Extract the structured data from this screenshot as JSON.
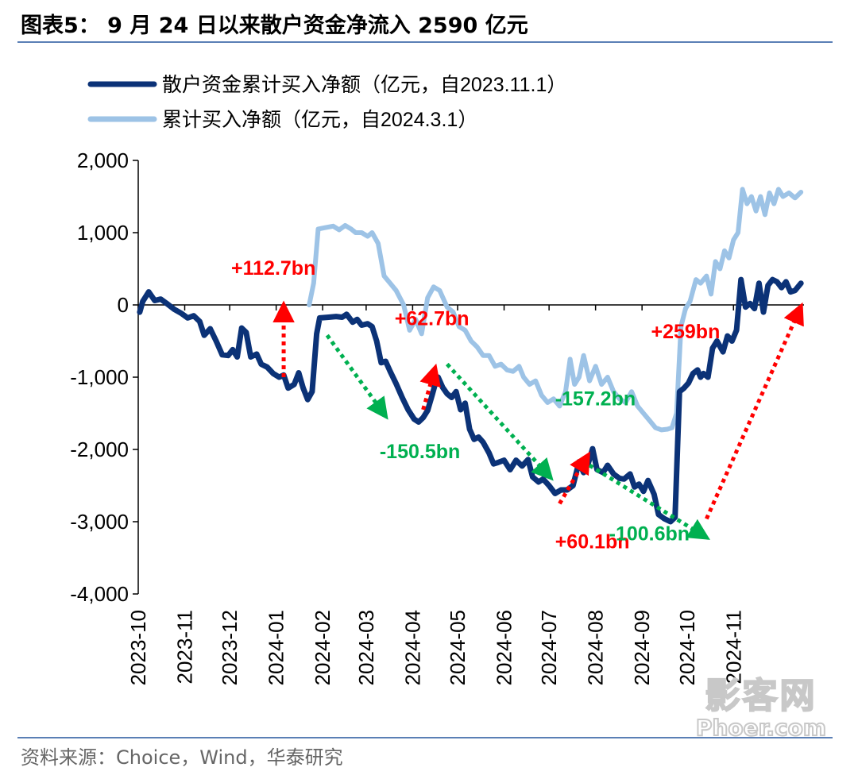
{
  "title": "图表5： 9 月 24 日以来散户资金净流入 2590 亿元",
  "source": "资料来源：Choice，Wind，华泰研究",
  "watermark": {
    "line1": "影客网",
    "line2": "Phoer.com"
  },
  "colors": {
    "series1": "#0b3277",
    "series2": "#9dc3e6",
    "up": "#ff0000",
    "down": "#00b050",
    "rule": "#5a7fb5"
  },
  "chart_data": {
    "type": "line",
    "ylim": [
      -4000,
      2000
    ],
    "yticks": [
      2000,
      1000,
      0,
      -1000,
      -2000,
      -3000,
      -4000
    ],
    "ytick_labels": [
      "2,000",
      "1,000",
      "0",
      "-1,000",
      "-2,000",
      "-3,000",
      "-4,000"
    ],
    "xlim": [
      "2023-10-01",
      "2024-12-01"
    ],
    "xticks": [
      "2023-10-01",
      "2023-11-01",
      "2023-12-01",
      "2024-01-01",
      "2024-02-01",
      "2024-03-01",
      "2024-04-01",
      "2024-05-01",
      "2024-06-01",
      "2024-07-01",
      "2024-08-01",
      "2024-09-01",
      "2024-10-01",
      "2024-11-01"
    ],
    "xtick_labels": [
      "2023-10",
      "2023-11",
      "2023-12",
      "2024-01",
      "2024-02",
      "2024-03",
      "2024-04",
      "2024-05",
      "2024-06",
      "2024-07",
      "2024-08",
      "2024-09",
      "2024-10",
      "2024-11"
    ],
    "legend_position": "top-left",
    "series": [
      {
        "name": "散户资金累计买入净额（亿元，自2023.11.1）",
        "color": "#0b3277",
        "points": [
          [
            "2023-10-02",
            -100
          ],
          [
            "2023-10-04",
            50
          ],
          [
            "2023-10-08",
            180
          ],
          [
            "2023-10-12",
            60
          ],
          [
            "2023-10-16",
            80
          ],
          [
            "2023-10-20",
            20
          ],
          [
            "2023-10-25",
            -60
          ],
          [
            "2023-10-30",
            -120
          ],
          [
            "2023-11-03",
            -180
          ],
          [
            "2023-11-07",
            -150
          ],
          [
            "2023-11-11",
            -230
          ],
          [
            "2023-11-14",
            -420
          ],
          [
            "2023-11-18",
            -330
          ],
          [
            "2023-11-22",
            -500
          ],
          [
            "2023-11-26",
            -690
          ],
          [
            "2023-11-30",
            -700
          ],
          [
            "2023-12-03",
            -620
          ],
          [
            "2023-12-06",
            -720
          ],
          [
            "2023-12-09",
            -320
          ],
          [
            "2023-12-12",
            -380
          ],
          [
            "2023-12-15",
            -720
          ],
          [
            "2023-12-19",
            -680
          ],
          [
            "2023-12-22",
            -820
          ],
          [
            "2023-12-26",
            -860
          ],
          [
            "2023-12-30",
            -950
          ],
          [
            "2024-01-03",
            -1000
          ],
          [
            "2024-01-06",
            -970
          ],
          [
            "2024-01-09",
            -1150
          ],
          [
            "2024-01-13",
            -1100
          ],
          [
            "2024-01-16",
            -940
          ],
          [
            "2024-01-19",
            -1150
          ],
          [
            "2024-01-22",
            -1310
          ],
          [
            "2024-01-25",
            -1200
          ],
          [
            "2024-01-28",
            -400
          ],
          [
            "2024-01-30",
            -180
          ],
          [
            "2024-02-05",
            -170
          ],
          [
            "2024-02-10",
            -160
          ],
          [
            "2024-02-14",
            -170
          ],
          [
            "2024-02-17",
            -130
          ],
          [
            "2024-02-21",
            -240
          ],
          [
            "2024-02-24",
            -200
          ],
          [
            "2024-02-27",
            -280
          ],
          [
            "2024-03-02",
            -260
          ],
          [
            "2024-03-05",
            -300
          ],
          [
            "2024-03-08",
            -500
          ],
          [
            "2024-03-11",
            -800
          ],
          [
            "2024-03-14",
            -780
          ],
          [
            "2024-03-17",
            -920
          ],
          [
            "2024-03-21",
            -1090
          ],
          [
            "2024-03-25",
            -1280
          ],
          [
            "2024-03-29",
            -1450
          ],
          [
            "2024-04-02",
            -1580
          ],
          [
            "2024-04-05",
            -1620
          ],
          [
            "2024-04-08",
            -1560
          ],
          [
            "2024-04-11",
            -1460
          ],
          [
            "2024-04-14",
            -1250
          ],
          [
            "2024-04-16",
            -1100
          ],
          [
            "2024-04-18",
            -1000
          ],
          [
            "2024-04-21",
            -1140
          ],
          [
            "2024-04-24",
            -1230
          ],
          [
            "2024-04-27",
            -1280
          ],
          [
            "2024-04-30",
            -1200
          ],
          [
            "2024-05-03",
            -1450
          ],
          [
            "2024-05-06",
            -1360
          ],
          [
            "2024-05-09",
            -1720
          ],
          [
            "2024-05-12",
            -1860
          ],
          [
            "2024-05-15",
            -1830
          ],
          [
            "2024-05-18",
            -1900
          ],
          [
            "2024-05-22",
            -2050
          ],
          [
            "2024-05-25",
            -2200
          ],
          [
            "2024-05-28",
            -2180
          ],
          [
            "2024-06-01",
            -2150
          ],
          [
            "2024-06-05",
            -2280
          ],
          [
            "2024-06-09",
            -2150
          ],
          [
            "2024-06-13",
            -2230
          ],
          [
            "2024-06-17",
            -2140
          ],
          [
            "2024-06-20",
            -2380
          ],
          [
            "2024-06-24",
            -2450
          ],
          [
            "2024-06-27",
            -2410
          ],
          [
            "2024-07-01",
            -2500
          ],
          [
            "2024-07-05",
            -2610
          ],
          [
            "2024-07-09",
            -2560
          ],
          [
            "2024-07-13",
            -2560
          ],
          [
            "2024-07-17",
            -2500
          ],
          [
            "2024-07-21",
            -2170
          ],
          [
            "2024-07-24",
            -2320
          ],
          [
            "2024-07-27",
            -2200
          ],
          [
            "2024-07-30",
            -1990
          ],
          [
            "2024-08-02",
            -2280
          ],
          [
            "2024-08-06",
            -2320
          ],
          [
            "2024-08-09",
            -2220
          ],
          [
            "2024-08-13",
            -2340
          ],
          [
            "2024-08-17",
            -2400
          ],
          [
            "2024-08-20",
            -2410
          ],
          [
            "2024-08-24",
            -2340
          ],
          [
            "2024-08-27",
            -2520
          ],
          [
            "2024-08-30",
            -2480
          ],
          [
            "2024-09-02",
            -2580
          ],
          [
            "2024-09-05",
            -2430
          ],
          [
            "2024-09-09",
            -2620
          ],
          [
            "2024-09-12",
            -2900
          ],
          [
            "2024-09-16",
            -2960
          ],
          [
            "2024-09-20",
            -3000
          ],
          [
            "2024-09-23",
            -2940
          ],
          [
            "2024-09-26",
            -1200
          ],
          [
            "2024-09-29",
            -1150
          ],
          [
            "2024-10-02",
            -1080
          ],
          [
            "2024-10-05",
            -950
          ],
          [
            "2024-10-08",
            -900
          ],
          [
            "2024-10-10",
            -1000
          ],
          [
            "2024-10-12",
            -950
          ],
          [
            "2024-10-15",
            -1000
          ],
          [
            "2024-10-18",
            -600
          ],
          [
            "2024-10-21",
            -500
          ],
          [
            "2024-10-25",
            -650
          ],
          [
            "2024-10-28",
            -430
          ],
          [
            "2024-10-31",
            -500
          ],
          [
            "2024-11-03",
            -350
          ],
          [
            "2024-11-06",
            350
          ],
          [
            "2024-11-09",
            -30
          ],
          [
            "2024-11-12",
            20
          ],
          [
            "2024-11-15",
            -50
          ],
          [
            "2024-11-18",
            300
          ],
          [
            "2024-11-21",
            -100
          ],
          [
            "2024-11-24",
            270
          ],
          [
            "2024-11-27",
            350
          ],
          [
            "2024-11-30",
            320
          ],
          [
            "2024-12-03",
            240
          ],
          [
            "2024-12-06",
            320
          ],
          [
            "2024-12-09",
            180
          ],
          [
            "2024-12-12",
            200
          ],
          [
            "2024-12-16",
            300
          ]
        ]
      },
      {
        "name": "累计买入净额（亿元，自2024.3.1）",
        "color": "#9dc3e6",
        "points": [
          [
            "2024-01-23",
            0
          ],
          [
            "2024-01-26",
            300
          ],
          [
            "2024-01-29",
            1050
          ],
          [
            "2024-02-03",
            1070
          ],
          [
            "2024-02-08",
            1090
          ],
          [
            "2024-02-12",
            1040
          ],
          [
            "2024-02-16",
            1100
          ],
          [
            "2024-02-20",
            1050
          ],
          [
            "2024-02-23",
            1000
          ],
          [
            "2024-02-27",
            1000
          ],
          [
            "2024-03-02",
            950
          ],
          [
            "2024-03-05",
            1000
          ],
          [
            "2024-03-09",
            850
          ],
          [
            "2024-03-13",
            400
          ],
          [
            "2024-03-17",
            300
          ],
          [
            "2024-03-21",
            200
          ],
          [
            "2024-03-26",
            0
          ],
          [
            "2024-03-30",
            -350
          ],
          [
            "2024-04-03",
            -200
          ],
          [
            "2024-04-07",
            -400
          ],
          [
            "2024-04-11",
            100
          ],
          [
            "2024-04-15",
            250
          ],
          [
            "2024-04-19",
            200
          ],
          [
            "2024-04-24",
            -30
          ],
          [
            "2024-04-28",
            -100
          ],
          [
            "2024-05-02",
            -300
          ],
          [
            "2024-05-06",
            -350
          ],
          [
            "2024-05-10",
            -500
          ],
          [
            "2024-05-14",
            -580
          ],
          [
            "2024-05-18",
            -700
          ],
          [
            "2024-05-22",
            -700
          ],
          [
            "2024-05-26",
            -850
          ],
          [
            "2024-05-30",
            -820
          ],
          [
            "2024-06-03",
            -900
          ],
          [
            "2024-06-07",
            -920
          ],
          [
            "2024-06-11",
            -850
          ],
          [
            "2024-06-14",
            -1000
          ],
          [
            "2024-06-18",
            -1100
          ],
          [
            "2024-06-22",
            -1050
          ],
          [
            "2024-06-26",
            -1250
          ],
          [
            "2024-06-30",
            -1350
          ],
          [
            "2024-07-04",
            -1300
          ],
          [
            "2024-07-08",
            -1400
          ],
          [
            "2024-07-12",
            -1200
          ],
          [
            "2024-07-15",
            -750
          ],
          [
            "2024-07-18",
            -1100
          ],
          [
            "2024-07-21",
            -1000
          ],
          [
            "2024-07-24",
            -700
          ],
          [
            "2024-07-28",
            -1050
          ],
          [
            "2024-08-01",
            -850
          ],
          [
            "2024-08-05",
            -1100
          ],
          [
            "2024-08-09",
            -1000
          ],
          [
            "2024-08-13",
            -1200
          ],
          [
            "2024-08-17",
            -1300
          ],
          [
            "2024-08-21",
            -1350
          ],
          [
            "2024-08-25",
            -1200
          ],
          [
            "2024-08-29",
            -1400
          ],
          [
            "2024-09-02",
            -1500
          ],
          [
            "2024-09-06",
            -1600
          ],
          [
            "2024-09-10",
            -1700
          ],
          [
            "2024-09-14",
            -1730
          ],
          [
            "2024-09-18",
            -1720
          ],
          [
            "2024-09-21",
            -1700
          ],
          [
            "2024-09-24",
            -1500
          ],
          [
            "2024-09-27",
            -300
          ],
          [
            "2024-09-30",
            -50
          ],
          [
            "2024-10-03",
            50
          ],
          [
            "2024-10-07",
            350
          ],
          [
            "2024-10-10",
            300
          ],
          [
            "2024-10-14",
            400
          ],
          [
            "2024-10-17",
            150
          ],
          [
            "2024-10-20",
            600
          ],
          [
            "2024-10-23",
            500
          ],
          [
            "2024-10-26",
            750
          ],
          [
            "2024-10-29",
            650
          ],
          [
            "2024-11-01",
            900
          ],
          [
            "2024-11-04",
            1000
          ],
          [
            "2024-11-07",
            1600
          ],
          [
            "2024-11-10",
            1400
          ],
          [
            "2024-11-13",
            1500
          ],
          [
            "2024-11-16",
            1300
          ],
          [
            "2024-11-19",
            1500
          ],
          [
            "2024-11-22",
            1250
          ],
          [
            "2024-11-25",
            1550
          ],
          [
            "2024-11-28",
            1400
          ],
          [
            "2024-12-01",
            1600
          ],
          [
            "2024-12-04",
            1500
          ],
          [
            "2024-12-08",
            1550
          ],
          [
            "2024-12-12",
            1480
          ],
          [
            "2024-12-16",
            1560
          ]
        ]
      }
    ],
    "annotations": [
      {
        "text": "+112.7bn",
        "color": "#ff0000",
        "direction": "up",
        "from": [
          "2024-01-06",
          -1000
        ],
        "to": [
          "2024-01-06",
          0
        ],
        "label_at": [
          "2023-12-02",
          420
        ]
      },
      {
        "text": "+62.7bn",
        "color": "#ff0000",
        "direction": "up",
        "from": [
          "2024-04-08",
          -1450
        ],
        "to": [
          "2024-04-16",
          -870
        ],
        "label_at": [
          "2024-03-20",
          -280
        ]
      },
      {
        "text": "+60.1bn",
        "color": "#ff0000",
        "direction": "up",
        "from": [
          "2024-07-08",
          -2750
        ],
        "to": [
          "2024-07-27",
          -2080
        ],
        "label_at": [
          "2024-07-05",
          -3370
        ]
      },
      {
        "text": "+259bn",
        "color": "#ff0000",
        "direction": "up",
        "from": [
          "2024-10-14",
          -2960
        ],
        "to": [
          "2024-12-16",
          -20
        ],
        "label_at": [
          "2024-09-07",
          -460
        ]
      },
      {
        "text": "-150.5bn",
        "color": "#00b050",
        "direction": "down",
        "from": [
          "2024-02-04",
          -420
        ],
        "to": [
          "2024-03-14",
          -1540
        ],
        "label_at": [
          "2024-03-10",
          -2120
        ]
      },
      {
        "text": "-157.2bn",
        "color": "#00b050",
        "direction": "down",
        "from": [
          "2024-04-24",
          -820
        ],
        "to": [
          "2024-07-02",
          -2390
        ],
        "label_at": [
          "2024-07-05",
          -1390
        ]
      },
      {
        "text": "-100.6bn",
        "color": "#00b050",
        "direction": "down",
        "from": [
          "2024-07-28",
          -2220
        ],
        "to": [
          "2024-10-14",
          -3220
        ],
        "label_at": [
          "2024-08-10",
          -3260
        ]
      }
    ]
  }
}
